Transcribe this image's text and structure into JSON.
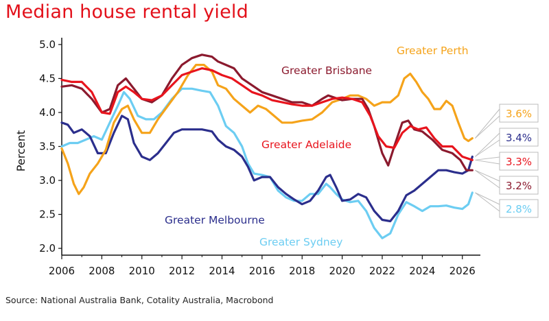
{
  "title": "Median house rental yield",
  "source": "Source: National Australia Bank, Cotality Australia, Macrobond",
  "chart_data": {
    "type": "line",
    "title": "Median house rental yield",
    "ylabel": "Percent",
    "xlabel": "",
    "xlim": [
      2006,
      2026.9
    ],
    "ylim": [
      1.9,
      5.1
    ],
    "xticks": [
      "2006",
      "2008",
      "2010",
      "2012",
      "2014",
      "2016",
      "2018",
      "2020",
      "2022",
      "2024",
      "2026"
    ],
    "yticks": [
      "2.0",
      "2.5",
      "3.0",
      "3.5",
      "4.0",
      "4.5",
      "5.0"
    ],
    "grid": false,
    "series": [
      {
        "name": "Greater Perth",
        "color": "#f5a31a",
        "end_label": "3.6%",
        "points": [
          [
            2006.0,
            3.47
          ],
          [
            2006.3,
            3.25
          ],
          [
            2006.6,
            2.95
          ],
          [
            2006.85,
            2.8
          ],
          [
            2007.1,
            2.9
          ],
          [
            2007.4,
            3.1
          ],
          [
            2007.8,
            3.25
          ],
          [
            2008.2,
            3.45
          ],
          [
            2008.6,
            3.85
          ],
          [
            2009.0,
            4.05
          ],
          [
            2009.3,
            4.1
          ],
          [
            2009.6,
            3.9
          ],
          [
            2010.0,
            3.7
          ],
          [
            2010.4,
            3.7
          ],
          [
            2010.8,
            3.9
          ],
          [
            2011.3,
            4.1
          ],
          [
            2011.8,
            4.3
          ],
          [
            2012.3,
            4.55
          ],
          [
            2012.7,
            4.7
          ],
          [
            2013.1,
            4.7
          ],
          [
            2013.5,
            4.6
          ],
          [
            2013.8,
            4.4
          ],
          [
            2014.2,
            4.35
          ],
          [
            2014.6,
            4.2
          ],
          [
            2015.0,
            4.1
          ],
          [
            2015.4,
            4.0
          ],
          [
            2015.8,
            4.1
          ],
          [
            2016.2,
            4.05
          ],
          [
            2016.6,
            3.95
          ],
          [
            2017.0,
            3.85
          ],
          [
            2017.5,
            3.85
          ],
          [
            2018.0,
            3.88
          ],
          [
            2018.5,
            3.9
          ],
          [
            2019.0,
            4.0
          ],
          [
            2019.5,
            4.15
          ],
          [
            2020.0,
            4.2
          ],
          [
            2020.4,
            4.25
          ],
          [
            2020.8,
            4.25
          ],
          [
            2021.2,
            4.2
          ],
          [
            2021.6,
            4.1
          ],
          [
            2022.0,
            4.15
          ],
          [
            2022.4,
            4.15
          ],
          [
            2022.8,
            4.25
          ],
          [
            2023.1,
            4.5
          ],
          [
            2023.4,
            4.57
          ],
          [
            2023.7,
            4.45
          ],
          [
            2024.0,
            4.3
          ],
          [
            2024.3,
            4.2
          ],
          [
            2024.6,
            4.05
          ],
          [
            2024.9,
            4.05
          ],
          [
            2025.2,
            4.17
          ],
          [
            2025.5,
            4.1
          ],
          [
            2025.8,
            3.85
          ],
          [
            2026.1,
            3.62
          ],
          [
            2026.3,
            3.58
          ],
          [
            2026.5,
            3.62
          ]
        ]
      },
      {
        "name": "Greater Brisbane",
        "color": "#8b1a2e",
        "end_label": "3.2%",
        "points": [
          [
            2006.0,
            4.38
          ],
          [
            2006.5,
            4.4
          ],
          [
            2007.0,
            4.35
          ],
          [
            2007.5,
            4.2
          ],
          [
            2008.0,
            4.0
          ],
          [
            2008.4,
            4.05
          ],
          [
            2008.8,
            4.4
          ],
          [
            2009.2,
            4.5
          ],
          [
            2009.6,
            4.35
          ],
          [
            2010.0,
            4.2
          ],
          [
            2010.5,
            4.15
          ],
          [
            2011.0,
            4.25
          ],
          [
            2011.5,
            4.5
          ],
          [
            2012.0,
            4.7
          ],
          [
            2012.5,
            4.8
          ],
          [
            2013.0,
            4.85
          ],
          [
            2013.5,
            4.82
          ],
          [
            2013.8,
            4.75
          ],
          [
            2014.2,
            4.7
          ],
          [
            2014.6,
            4.65
          ],
          [
            2015.0,
            4.5
          ],
          [
            2015.5,
            4.4
          ],
          [
            2016.0,
            4.3
          ],
          [
            2016.5,
            4.25
          ],
          [
            2017.0,
            4.2
          ],
          [
            2017.5,
            4.15
          ],
          [
            2018.0,
            4.15
          ],
          [
            2018.5,
            4.1
          ],
          [
            2019.0,
            4.2
          ],
          [
            2019.3,
            4.25
          ],
          [
            2019.6,
            4.22
          ],
          [
            2020.0,
            4.18
          ],
          [
            2020.5,
            4.2
          ],
          [
            2021.0,
            4.2
          ],
          [
            2021.3,
            4.05
          ],
          [
            2021.6,
            3.8
          ],
          [
            2022.0,
            3.4
          ],
          [
            2022.3,
            3.22
          ],
          [
            2022.6,
            3.5
          ],
          [
            2023.0,
            3.85
          ],
          [
            2023.3,
            3.88
          ],
          [
            2023.6,
            3.75
          ],
          [
            2024.0,
            3.72
          ],
          [
            2024.5,
            3.6
          ],
          [
            2025.0,
            3.45
          ],
          [
            2025.5,
            3.4
          ],
          [
            2025.9,
            3.3
          ],
          [
            2026.2,
            3.15
          ],
          [
            2026.5,
            3.15
          ]
        ]
      },
      {
        "name": "Greater Adelaide",
        "color": "#e8141d",
        "end_label": "3.3%",
        "points": [
          [
            2006.0,
            4.48
          ],
          [
            2006.5,
            4.45
          ],
          [
            2007.0,
            4.45
          ],
          [
            2007.5,
            4.3
          ],
          [
            2008.0,
            4.0
          ],
          [
            2008.4,
            3.98
          ],
          [
            2008.8,
            4.3
          ],
          [
            2009.2,
            4.38
          ],
          [
            2009.6,
            4.3
          ],
          [
            2010.0,
            4.2
          ],
          [
            2010.5,
            4.18
          ],
          [
            2011.0,
            4.25
          ],
          [
            2011.5,
            4.4
          ],
          [
            2012.0,
            4.55
          ],
          [
            2012.5,
            4.6
          ],
          [
            2013.0,
            4.65
          ],
          [
            2013.5,
            4.62
          ],
          [
            2014.0,
            4.55
          ],
          [
            2014.5,
            4.5
          ],
          [
            2015.0,
            4.4
          ],
          [
            2015.5,
            4.3
          ],
          [
            2016.0,
            4.25
          ],
          [
            2016.5,
            4.18
          ],
          [
            2017.0,
            4.15
          ],
          [
            2017.5,
            4.12
          ],
          [
            2018.0,
            4.1
          ],
          [
            2018.5,
            4.1
          ],
          [
            2019.0,
            4.15
          ],
          [
            2019.5,
            4.2
          ],
          [
            2020.0,
            4.22
          ],
          [
            2020.5,
            4.2
          ],
          [
            2021.0,
            4.15
          ],
          [
            2021.4,
            3.95
          ],
          [
            2021.8,
            3.65
          ],
          [
            2022.2,
            3.5
          ],
          [
            2022.6,
            3.48
          ],
          [
            2023.0,
            3.7
          ],
          [
            2023.4,
            3.8
          ],
          [
            2023.8,
            3.75
          ],
          [
            2024.2,
            3.78
          ],
          [
            2024.6,
            3.62
          ],
          [
            2025.0,
            3.5
          ],
          [
            2025.5,
            3.5
          ],
          [
            2026.0,
            3.35
          ],
          [
            2026.5,
            3.3
          ]
        ]
      },
      {
        "name": "Greater Melbourne",
        "color": "#2b2e8c",
        "end_label": "3.4%",
        "points": [
          [
            2006.0,
            3.85
          ],
          [
            2006.3,
            3.82
          ],
          [
            2006.6,
            3.7
          ],
          [
            2007.0,
            3.75
          ],
          [
            2007.4,
            3.65
          ],
          [
            2007.8,
            3.4
          ],
          [
            2008.2,
            3.4
          ],
          [
            2008.6,
            3.7
          ],
          [
            2009.0,
            3.95
          ],
          [
            2009.3,
            3.9
          ],
          [
            2009.6,
            3.55
          ],
          [
            2010.0,
            3.35
          ],
          [
            2010.4,
            3.3
          ],
          [
            2010.8,
            3.4
          ],
          [
            2011.2,
            3.55
          ],
          [
            2011.6,
            3.7
          ],
          [
            2012.0,
            3.75
          ],
          [
            2012.5,
            3.75
          ],
          [
            2013.0,
            3.75
          ],
          [
            2013.5,
            3.72
          ],
          [
            2013.8,
            3.6
          ],
          [
            2014.2,
            3.5
          ],
          [
            2014.6,
            3.45
          ],
          [
            2015.0,
            3.35
          ],
          [
            2015.3,
            3.2
          ],
          [
            2015.6,
            3.0
          ],
          [
            2016.0,
            3.05
          ],
          [
            2016.4,
            3.05
          ],
          [
            2016.8,
            2.9
          ],
          [
            2017.2,
            2.8
          ],
          [
            2017.6,
            2.72
          ],
          [
            2018.0,
            2.65
          ],
          [
            2018.4,
            2.7
          ],
          [
            2018.8,
            2.85
          ],
          [
            2019.2,
            3.05
          ],
          [
            2019.4,
            3.08
          ],
          [
            2019.7,
            2.9
          ],
          [
            2020.0,
            2.7
          ],
          [
            2020.4,
            2.72
          ],
          [
            2020.8,
            2.8
          ],
          [
            2021.2,
            2.75
          ],
          [
            2021.6,
            2.55
          ],
          [
            2022.0,
            2.42
          ],
          [
            2022.4,
            2.4
          ],
          [
            2022.8,
            2.55
          ],
          [
            2023.2,
            2.78
          ],
          [
            2023.6,
            2.85
          ],
          [
            2024.0,
            2.95
          ],
          [
            2024.4,
            3.05
          ],
          [
            2024.8,
            3.15
          ],
          [
            2025.2,
            3.15
          ],
          [
            2025.6,
            3.12
          ],
          [
            2026.0,
            3.1
          ],
          [
            2026.3,
            3.15
          ],
          [
            2026.5,
            3.35
          ]
        ]
      },
      {
        "name": "Greater Sydney",
        "color": "#6ccdf2",
        "end_label": "2.8%",
        "points": [
          [
            2006.0,
            3.5
          ],
          [
            2006.4,
            3.55
          ],
          [
            2006.8,
            3.55
          ],
          [
            2007.2,
            3.6
          ],
          [
            2007.6,
            3.65
          ],
          [
            2008.0,
            3.6
          ],
          [
            2008.4,
            3.85
          ],
          [
            2008.8,
            4.1
          ],
          [
            2009.1,
            4.3
          ],
          [
            2009.4,
            4.2
          ],
          [
            2009.8,
            3.95
          ],
          [
            2010.2,
            3.9
          ],
          [
            2010.6,
            3.9
          ],
          [
            2011.0,
            4.0
          ],
          [
            2011.5,
            4.2
          ],
          [
            2012.0,
            4.35
          ],
          [
            2012.5,
            4.35
          ],
          [
            2013.0,
            4.32
          ],
          [
            2013.4,
            4.3
          ],
          [
            2013.8,
            4.1
          ],
          [
            2014.2,
            3.8
          ],
          [
            2014.6,
            3.7
          ],
          [
            2015.0,
            3.5
          ],
          [
            2015.3,
            3.25
          ],
          [
            2015.6,
            3.1
          ],
          [
            2016.0,
            3.08
          ],
          [
            2016.4,
            3.05
          ],
          [
            2016.8,
            2.85
          ],
          [
            2017.2,
            2.75
          ],
          [
            2017.6,
            2.7
          ],
          [
            2018.0,
            2.7
          ],
          [
            2018.4,
            2.8
          ],
          [
            2018.8,
            2.8
          ],
          [
            2019.2,
            2.95
          ],
          [
            2019.4,
            2.9
          ],
          [
            2019.7,
            2.8
          ],
          [
            2020.0,
            2.72
          ],
          [
            2020.4,
            2.68
          ],
          [
            2020.8,
            2.7
          ],
          [
            2021.2,
            2.55
          ],
          [
            2021.6,
            2.3
          ],
          [
            2022.0,
            2.15
          ],
          [
            2022.4,
            2.22
          ],
          [
            2022.8,
            2.5
          ],
          [
            2023.2,
            2.68
          ],
          [
            2023.6,
            2.62
          ],
          [
            2024.0,
            2.55
          ],
          [
            2024.4,
            2.62
          ],
          [
            2024.8,
            2.62
          ],
          [
            2025.2,
            2.63
          ],
          [
            2025.6,
            2.6
          ],
          [
            2026.0,
            2.58
          ],
          [
            2026.3,
            2.65
          ],
          [
            2026.5,
            2.82
          ]
        ]
      }
    ],
    "series_labels": [
      {
        "name": "Greater Perth",
        "text": "Greater Perth",
        "color": "#f5a31a"
      },
      {
        "name": "Greater Brisbane",
        "text": "Greater Brisbane",
        "color": "#8b1a2e"
      },
      {
        "name": "Greater Adelaide",
        "text": "Greater Adelaide",
        "color": "#e8141d"
      },
      {
        "name": "Greater Melbourne",
        "text": "Greater Melbourne",
        "color": "#2b2e8c"
      },
      {
        "name": "Greater Sydney",
        "text": "Greater Sydney",
        "color": "#6ccdf2"
      }
    ]
  }
}
